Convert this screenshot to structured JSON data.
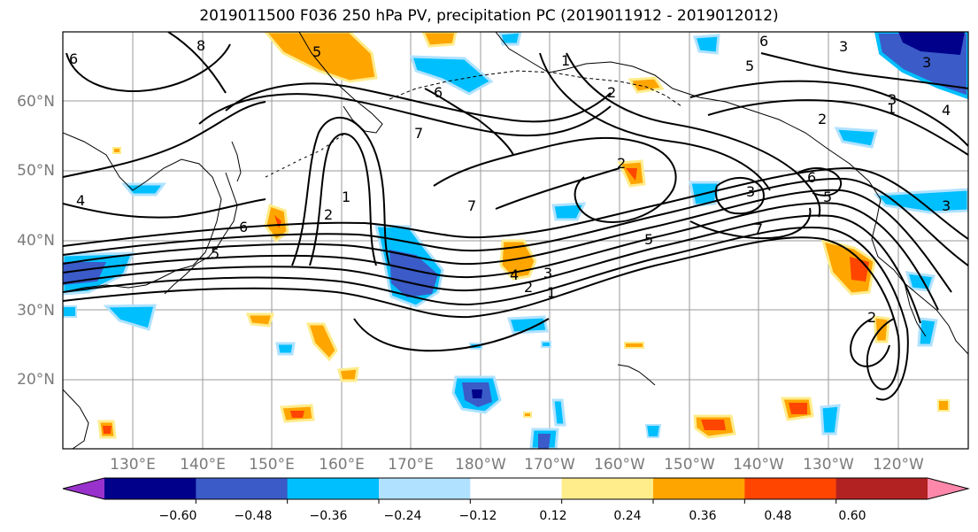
{
  "title": "2019011500 F036 250 hPa PV, precipitation PC (2019011912 - 2019012012)",
  "map": {
    "lon_labels": [
      "130°E",
      "140°E",
      "150°E",
      "160°E",
      "170°E",
      "180°W",
      "170°W",
      "160°W",
      "150°W",
      "140°W",
      "130°W",
      "120°W"
    ],
    "lat_labels": [
      "60°N",
      "50°N",
      "40°N",
      "30°N",
      "20°N"
    ],
    "contour_labels": [
      "8",
      "6",
      "4",
      "5",
      "7",
      "6",
      "5",
      "2",
      "1",
      "2",
      "3",
      "1",
      "6",
      "4",
      "5",
      "3",
      "7",
      "2",
      "1",
      "3",
      "2",
      "1",
      "4",
      "2",
      "6",
      "5",
      "3",
      "5",
      "7",
      "6",
      "3",
      "2",
      "3"
    ]
  },
  "colorbar": {
    "colors": [
      "#9932cc",
      "#00008b",
      "#3a5bc8",
      "#00bfff",
      "#b0e2ff",
      "#ffffff",
      "#ffec8b",
      "#ffa500",
      "#ff4500",
      "#b22222",
      "#ff88aa"
    ],
    "tick_labels": [
      "−0.60",
      "−0.48",
      "−0.36",
      "−0.24",
      "−0.12",
      "0.12",
      "0.24",
      "0.36",
      "0.48",
      "0.60"
    ]
  }
}
